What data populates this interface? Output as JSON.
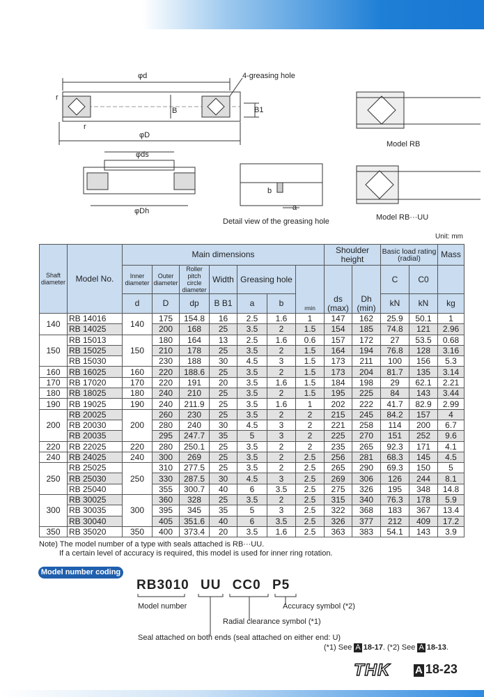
{
  "diagrams": {
    "phi_d": "φd",
    "greasing_hole_label": "4-greasing hole",
    "B": "B",
    "B1": "B1",
    "r": "r",
    "phi_D": "φD",
    "phi_ds": "φds",
    "phi_Dh": "φDh",
    "a": "a",
    "b": "b",
    "detail_caption": "Detail view of the greasing hole",
    "model_rb": "Model RB",
    "model_rbuu": "Model RB···UU"
  },
  "unit": "Unit: mm",
  "table": {
    "headers": {
      "shaft": "Shaft diameter",
      "model": "Model No.",
      "main": "Main dimensions",
      "shoulder": "Shoulder height",
      "load": "Basic load rating (radial)",
      "mass": "Mass",
      "inner": "Inner diameter",
      "outer": "Outer diameter",
      "pitch": "Roller pitch circle diameter",
      "width": "Width",
      "greasing": "Greasing hole",
      "C": "C",
      "C0": "C0",
      "d": "d",
      "D": "D",
      "dp": "dp",
      "BB1": "B B1",
      "a": "a",
      "b": "b",
      "rmin": "rmin",
      "ds": "ds (max)",
      "Dh": "Dh (min)",
      "kN1": "kN",
      "kN2": "kN",
      "kg": "kg"
    },
    "groups": [
      {
        "shaft": "140",
        "d": "140",
        "rows": [
          [
            "RB 14016",
            "175",
            "154.8",
            "16",
            "2.5",
            "1.6",
            "1",
            "147",
            "162",
            "25.9",
            "50.1",
            "1"
          ],
          [
            "RB 14025",
            "200",
            "168",
            "25",
            "3.5",
            "2",
            "1.5",
            "154",
            "185",
            "74.8",
            "121",
            "2.96"
          ]
        ]
      },
      {
        "shaft": "150",
        "d": "150",
        "rows": [
          [
            "RB 15013",
            "180",
            "164",
            "13",
            "2.5",
            "1.6",
            "0.6",
            "157",
            "172",
            "27",
            "53.5",
            "0.68"
          ],
          [
            "RB 15025",
            "210",
            "178",
            "25",
            "3.5",
            "2",
            "1.5",
            "164",
            "194",
            "76.8",
            "128",
            "3.16"
          ],
          [
            "RB 15030",
            "230",
            "188",
            "30",
            "4.5",
            "3",
            "1.5",
            "173",
            "211",
            "100",
            "156",
            "5.3"
          ]
        ]
      },
      {
        "shaft": "160",
        "d": "160",
        "rows": [
          [
            "RB 16025",
            "220",
            "188.6",
            "25",
            "3.5",
            "2",
            "1.5",
            "173",
            "204",
            "81.7",
            "135",
            "3.14"
          ]
        ]
      },
      {
        "shaft": "170",
        "d": "170",
        "rows": [
          [
            "RB 17020",
            "220",
            "191",
            "20",
            "3.5",
            "1.6",
            "1.5",
            "184",
            "198",
            "29",
            "62.1",
            "2.21"
          ]
        ]
      },
      {
        "shaft": "180",
        "d": "180",
        "rows": [
          [
            "RB 18025",
            "240",
            "210",
            "25",
            "3.5",
            "2",
            "1.5",
            "195",
            "225",
            "84",
            "143",
            "3.44"
          ]
        ]
      },
      {
        "shaft": "190",
        "d": "190",
        "rows": [
          [
            "RB 19025",
            "240",
            "211.9",
            "25",
            "3.5",
            "1.6",
            "1",
            "202",
            "222",
            "41.7",
            "82.9",
            "2.99"
          ]
        ]
      },
      {
        "shaft": "200",
        "d": "200",
        "rows": [
          [
            "RB 20025",
            "260",
            "230",
            "25",
            "3.5",
            "2",
            "2",
            "215",
            "245",
            "84.2",
            "157",
            "4"
          ],
          [
            "RB 20030",
            "280",
            "240",
            "30",
            "4.5",
            "3",
            "2",
            "221",
            "258",
            "114",
            "200",
            "6.7"
          ],
          [
            "RB 20035",
            "295",
            "247.7",
            "35",
            "5",
            "3",
            "2",
            "225",
            "270",
            "151",
            "252",
            "9.6"
          ]
        ]
      },
      {
        "shaft": "220",
        "d": "220",
        "rows": [
          [
            "RB 22025",
            "280",
            "250.1",
            "25",
            "3.5",
            "2",
            "2",
            "235",
            "265",
            "92.3",
            "171",
            "4.1"
          ]
        ]
      },
      {
        "shaft": "240",
        "d": "240",
        "rows": [
          [
            "RB 24025",
            "300",
            "269",
            "25",
            "3.5",
            "2",
            "2.5",
            "256",
            "281",
            "68.3",
            "145",
            "4.5"
          ]
        ]
      },
      {
        "shaft": "250",
        "d": "250",
        "rows": [
          [
            "RB 25025",
            "310",
            "277.5",
            "25",
            "3.5",
            "2",
            "2.5",
            "265",
            "290",
            "69.3",
            "150",
            "5"
          ],
          [
            "RB 25030",
            "330",
            "287.5",
            "30",
            "4.5",
            "3",
            "2.5",
            "269",
            "306",
            "126",
            "244",
            "8.1"
          ],
          [
            "RB 25040",
            "355",
            "300.7",
            "40",
            "6",
            "3.5",
            "2.5",
            "275",
            "326",
            "195",
            "348",
            "14.8"
          ]
        ]
      },
      {
        "shaft": "300",
        "d": "300",
        "rows": [
          [
            "RB 30025",
            "360",
            "328",
            "25",
            "3.5",
            "2",
            "2.5",
            "315",
            "340",
            "76.3",
            "178",
            "5.9"
          ],
          [
            "RB 30035",
            "395",
            "345",
            "35",
            "5",
            "3",
            "2.5",
            "322",
            "368",
            "183",
            "367",
            "13.4"
          ],
          [
            "RB 30040",
            "405",
            "351.6",
            "40",
            "6",
            "3.5",
            "2.5",
            "326",
            "377",
            "212",
            "409",
            "17.2"
          ]
        ]
      },
      {
        "shaft": "350",
        "d": "350",
        "rows": [
          [
            "RB 35020",
            "400",
            "373.4",
            "20",
            "3.5",
            "1.6",
            "2.5",
            "363",
            "383",
            "54.1",
            "143",
            "3.9"
          ]
        ]
      }
    ]
  },
  "notes": {
    "line1": "Note) The model number of a type with seals attached is RB···UU.",
    "line2": "If a certain level of accuracy is required, this model is used for inner ring rotation."
  },
  "coding": {
    "pill": "Model number coding",
    "code": "RB3010 UU CC0 P5",
    "model_number": "Model number",
    "accuracy": "Accuracy symbol (*2)",
    "clearance": "Radial clearance symbol (*1)",
    "seal": "Seal attached on both ends (seal attached on either end: U)",
    "ref_a": "(*1) See",
    "ref_a_page": "18-17",
    "ref_b": ". (*2) See",
    "ref_b_page": "18-13",
    "ref_end": ".",
    "box": "A"
  },
  "footer": {
    "logo": "THK",
    "box": "A",
    "page": "18-23"
  },
  "colors": {
    "header_bg": "#c9dcf0",
    "accent": "#1f5fae",
    "row_shade": "#e2e2e2"
  }
}
